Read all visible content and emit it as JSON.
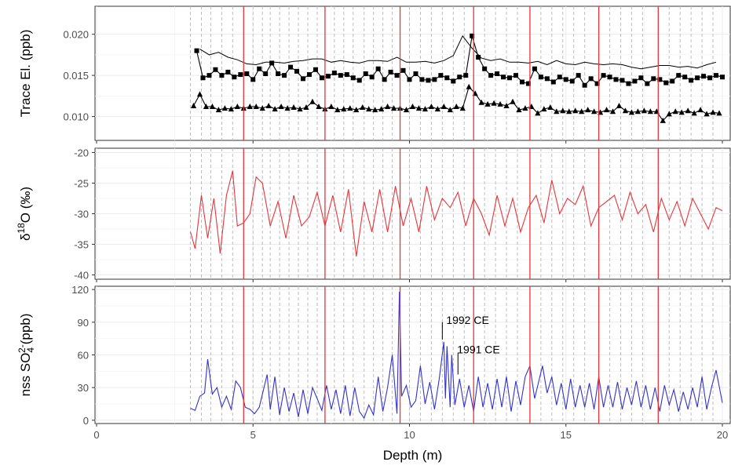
{
  "chart_data": {
    "type": "line",
    "layout": "three vertically stacked panels sharing x axis",
    "xlabel": "Depth (m)",
    "x_ticks": [
      0,
      5,
      10,
      15,
      20
    ],
    "xlim": [
      0,
      20
    ],
    "grid": true,
    "red_vertical_lines": [
      4.7,
      7.3,
      9.7,
      12.05,
      13.85,
      16.05,
      17.95
    ],
    "dashed_vertical_lines": [
      3.0,
      3.35,
      3.65,
      4.0,
      4.35,
      5.0,
      5.3,
      5.55,
      5.85,
      6.15,
      6.45,
      6.75,
      7.05,
      7.6,
      7.9,
      8.2,
      8.55,
      8.85,
      9.15,
      9.45,
      10.0,
      10.35,
      10.7,
      11.05,
      11.4,
      11.75,
      12.4,
      12.75,
      13.1,
      13.45,
      14.2,
      14.55,
      14.9,
      15.25,
      15.6,
      16.4,
      16.75,
      17.1,
      17.45,
      18.3,
      18.65,
      19.0,
      19.35,
      19.7
    ],
    "panels": [
      {
        "ylabel": "Trace El. (ppb)",
        "y_ticks": [
          "0.010",
          "0.015",
          "0.020"
        ],
        "ylim": [
          0.0071,
          0.0234
        ],
        "series": [
          {
            "marker": "none",
            "color": "#000000",
            "x": [
              3.3,
              3.6,
              3.9,
              4.2,
              4.5,
              4.8,
              5.1,
              5.4,
              5.7,
              6.0,
              6.3,
              6.6,
              6.9,
              7.2,
              7.5,
              7.8,
              8.1,
              8.4,
              8.7,
              9.0,
              9.3,
              9.6,
              9.9,
              10.2,
              10.5,
              10.8,
              11.1,
              11.4,
              11.7,
              12.0,
              12.3,
              12.6,
              12.9,
              13.2,
              13.5,
              13.8,
              14.1,
              14.4,
              14.7,
              15.0,
              15.3,
              15.6,
              15.9,
              16.2,
              16.5,
              16.8,
              17.1,
              17.4,
              17.7,
              18.0,
              18.3,
              18.6,
              18.9,
              19.2,
              19.5,
              19.8
            ],
            "values": [
              0.0182,
              0.0175,
              0.0178,
              0.0172,
              0.0169,
              0.0164,
              0.0163,
              0.0166,
              0.0166,
              0.0165,
              0.0167,
              0.0168,
              0.017,
              0.017,
              0.0166,
              0.0168,
              0.0166,
              0.0165,
              0.0168,
              0.0168,
              0.0167,
              0.0172,
              0.0166,
              0.0166,
              0.0167,
              0.0165,
              0.0168,
              0.0174,
              0.0198,
              0.0183,
              0.0171,
              0.0168,
              0.017,
              0.0166,
              0.0166,
              0.0165,
              0.0167,
              0.0163,
              0.0168,
              0.0164,
              0.0163,
              0.0166,
              0.0164,
              0.0163,
              0.0164,
              0.0163,
              0.016,
              0.0158,
              0.016,
              0.0162,
              0.0162,
              0.016,
              0.0161,
              0.0159,
              0.0163,
              0.0166
            ]
          },
          {
            "marker": "square",
            "color": "#000000",
            "x": [
              3.2,
              3.4,
              3.6,
              3.8,
              4.0,
              4.2,
              4.4,
              4.6,
              4.8,
              5.0,
              5.2,
              5.4,
              5.6,
              5.8,
              6.0,
              6.2,
              6.4,
              6.6,
              6.8,
              7.0,
              7.2,
              7.4,
              7.6,
              7.8,
              8.0,
              8.2,
              8.4,
              8.6,
              8.8,
              9.0,
              9.2,
              9.4,
              9.6,
              9.8,
              10.0,
              10.2,
              10.4,
              10.6,
              10.8,
              11.0,
              11.2,
              11.4,
              11.6,
              11.8,
              12.0,
              12.2,
              12.4,
              12.6,
              12.8,
              13.0,
              13.2,
              13.4,
              13.6,
              13.8,
              14.0,
              14.2,
              14.4,
              14.6,
              14.8,
              15.0,
              15.2,
              15.4,
              15.6,
              15.8,
              16.0,
              16.2,
              16.4,
              16.6,
              16.8,
              17.0,
              17.2,
              17.4,
              17.6,
              17.8,
              18.0,
              18.2,
              18.4,
              18.6,
              18.8,
              19.0,
              19.2,
              19.4,
              19.6,
              19.8,
              20.0
            ],
            "values": [
              0.018,
              0.0147,
              0.015,
              0.0157,
              0.015,
              0.0154,
              0.0148,
              0.0151,
              0.0152,
              0.0145,
              0.0158,
              0.0152,
              0.0165,
              0.0152,
              0.015,
              0.016,
              0.0155,
              0.0146,
              0.0151,
              0.0157,
              0.0147,
              0.0149,
              0.0153,
              0.015,
              0.0151,
              0.0147,
              0.0144,
              0.0152,
              0.0148,
              0.0158,
              0.0145,
              0.0154,
              0.015,
              0.0156,
              0.0145,
              0.0152,
              0.0145,
              0.0144,
              0.0145,
              0.015,
              0.0147,
              0.0143,
              0.0148,
              0.015,
              0.0198,
              0.0172,
              0.0158,
              0.015,
              0.0152,
              0.0148,
              0.0147,
              0.015,
              0.0142,
              0.014,
              0.0158,
              0.0148,
              0.0146,
              0.0142,
              0.0148,
              0.0145,
              0.0143,
              0.015,
              0.0138,
              0.0146,
              0.014,
              0.015,
              0.0148,
              0.0145,
              0.0144,
              0.014,
              0.0143,
              0.0147,
              0.014,
              0.0146,
              0.0145,
              0.0141,
              0.0143,
              0.015,
              0.0148,
              0.0144,
              0.0147,
              0.0149,
              0.0147,
              0.015,
              0.0148
            ]
          },
          {
            "marker": "triangle",
            "color": "#000000",
            "x": [
              3.1,
              3.3,
              3.5,
              3.7,
              3.9,
              4.1,
              4.3,
              4.5,
              4.7,
              4.9,
              5.1,
              5.3,
              5.5,
              5.7,
              5.9,
              6.1,
              6.3,
              6.5,
              6.7,
              6.9,
              7.1,
              7.3,
              7.5,
              7.7,
              7.9,
              8.1,
              8.3,
              8.5,
              8.7,
              8.9,
              9.1,
              9.3,
              9.5,
              9.7,
              9.9,
              10.1,
              10.3,
              10.5,
              10.7,
              10.9,
              11.1,
              11.3,
              11.5,
              11.7,
              11.9,
              12.1,
              12.3,
              12.5,
              12.7,
              12.9,
              13.1,
              13.3,
              13.5,
              13.7,
              13.9,
              14.1,
              14.3,
              14.5,
              14.7,
              14.9,
              15.1,
              15.3,
              15.5,
              15.7,
              15.9,
              16.1,
              16.3,
              16.5,
              16.7,
              16.9,
              17.1,
              17.3,
              17.5,
              17.7,
              17.9,
              18.1,
              18.3,
              18.5,
              18.7,
              18.9,
              19.1,
              19.3,
              19.5,
              19.7,
              19.9
            ],
            "values": [
              0.0113,
              0.0127,
              0.0112,
              0.0112,
              0.0108,
              0.011,
              0.0109,
              0.0112,
              0.011,
              0.0112,
              0.0112,
              0.011,
              0.0113,
              0.0109,
              0.0112,
              0.011,
              0.0111,
              0.0109,
              0.0111,
              0.0118,
              0.0112,
              0.0109,
              0.0112,
              0.0108,
              0.0109,
              0.011,
              0.0108,
              0.0111,
              0.0109,
              0.0108,
              0.0109,
              0.0112,
              0.011,
              0.011,
              0.0108,
              0.0112,
              0.011,
              0.0109,
              0.0112,
              0.0109,
              0.0112,
              0.0108,
              0.0112,
              0.011,
              0.0136,
              0.0128,
              0.0117,
              0.0115,
              0.0116,
              0.0115,
              0.0113,
              0.0118,
              0.0108,
              0.011,
              0.0112,
              0.0104,
              0.0109,
              0.0111,
              0.0106,
              0.0107,
              0.0106,
              0.0107,
              0.0106,
              0.0108,
              0.0106,
              0.0105,
              0.0108,
              0.0106,
              0.0113,
              0.0107,
              0.0105,
              0.0106,
              0.0107,
              0.0106,
              0.0106,
              0.0095,
              0.0103,
              0.0106,
              0.0105,
              0.0107,
              0.0104,
              0.0108,
              0.0103,
              0.0105,
              0.0104
            ]
          }
        ]
      },
      {
        "ylabel": "δ18O (‰)",
        "ylabel_base": "δ",
        "ylabel_sup": "18",
        "ylabel_rest": "O (‰)",
        "y_ticks": [
          "-40",
          "-35",
          "-30",
          "-25",
          "-20"
        ],
        "ylim": [
          -40.7,
          -19.3
        ],
        "series": [
          {
            "color": "#e8343a",
            "x": [
              3.0,
              3.15,
              3.35,
              3.55,
              3.75,
              3.95,
              4.15,
              4.35,
              4.5,
              4.7,
              4.9,
              5.1,
              5.3,
              5.55,
              5.8,
              6.05,
              6.3,
              6.55,
              6.8,
              7.05,
              7.3,
              7.55,
              7.8,
              8.05,
              8.3,
              8.55,
              8.8,
              9.05,
              9.3,
              9.55,
              9.8,
              10.05,
              10.3,
              10.55,
              10.8,
              11.05,
              11.3,
              11.55,
              11.8,
              12.05,
              12.3,
              12.55,
              12.8,
              13.05,
              13.3,
              13.55,
              13.8,
              14.05,
              14.3,
              14.55,
              14.8,
              15.05,
              15.3,
              15.55,
              15.8,
              16.05,
              16.3,
              16.55,
              16.8,
              17.05,
              17.3,
              17.55,
              17.8,
              18.05,
              18.3,
              18.55,
              18.8,
              19.05,
              19.3,
              19.55,
              19.8,
              20.0
            ],
            "values": [
              -33,
              -35.7,
              -27,
              -34,
              -27.5,
              -36.5,
              -27,
              -23,
              -32,
              -31.5,
              -30,
              -24,
              -25,
              -32,
              -28,
              -34,
              -27,
              -32,
              -30.5,
              -26.5,
              -32,
              -27,
              -33,
              -26,
              -37,
              -28,
              -33,
              -26,
              -33,
              -25.5,
              -32,
              -27.5,
              -33,
              -25.5,
              -31,
              -27.5,
              -29,
              -26.5,
              -32,
              -27.5,
              -30,
              -33.5,
              -27,
              -32,
              -27.5,
              -33,
              -29,
              -27,
              -31.5,
              -24.5,
              -30,
              -27.5,
              -28.5,
              -25.5,
              -32,
              -29,
              -28,
              -27,
              -31,
              -26.5,
              -30,
              -28.5,
              -33,
              -27.5,
              -31,
              -28,
              -32,
              -27.5,
              -30,
              -32.5,
              -29,
              -29.5
            ]
          }
        ]
      },
      {
        "ylabel": "nss SO42-(ppb)",
        "ylabel_base": "nss SO",
        "ylabel_sub": "4",
        "ylabel_sup": "2-",
        "ylabel_rest": "(ppb)",
        "y_ticks": [
          "0",
          "30",
          "60",
          "90",
          "120"
        ],
        "ylim": [
          -3,
          123
        ],
        "series": [
          {
            "color": "#3333cc",
            "x": [
              3.0,
              3.15,
              3.3,
              3.45,
              3.55,
              3.7,
              3.85,
              4.0,
              4.15,
              4.3,
              4.45,
              4.6,
              4.75,
              4.9,
              5.05,
              5.2,
              5.35,
              5.45,
              5.55,
              5.7,
              5.85,
              6.0,
              6.15,
              6.3,
              6.45,
              6.6,
              6.75,
              6.9,
              7.05,
              7.2,
              7.35,
              7.5,
              7.65,
              7.8,
              7.95,
              8.1,
              8.25,
              8.4,
              8.55,
              8.7,
              8.85,
              9.0,
              9.15,
              9.3,
              9.45,
              9.6,
              9.68,
              9.75,
              9.9,
              10.05,
              10.2,
              10.35,
              10.5,
              10.65,
              10.8,
              10.95,
              11.1,
              11.15,
              11.2,
              11.3,
              11.35,
              11.45,
              11.6,
              11.75,
              11.9,
              12.05,
              12.2,
              12.35,
              12.5,
              12.65,
              12.8,
              12.95,
              13.1,
              13.25,
              13.4,
              13.55,
              13.7,
              13.85,
              14.0,
              14.15,
              14.25,
              14.4,
              14.55,
              14.7,
              14.85,
              15.0,
              15.15,
              15.3,
              15.45,
              15.6,
              15.75,
              15.9,
              16.05,
              16.2,
              16.35,
              16.5,
              16.65,
              16.8,
              16.95,
              17.1,
              17.25,
              17.4,
              17.55,
              17.7,
              17.85,
              18.0,
              18.15,
              18.3,
              18.45,
              18.6,
              18.75,
              18.9,
              19.05,
              19.2,
              19.35,
              19.5,
              19.65,
              19.8,
              20.0
            ],
            "values": [
              11,
              9,
              22,
              25,
              56,
              24,
              30,
              12,
              22,
              10,
              36,
              30,
              12,
              10,
              6,
              12,
              30,
              42,
              10,
              40,
              5,
              30,
              8,
              25,
              3,
              28,
              6,
              30,
              20,
              9,
              32,
              10,
              28,
              6,
              32,
              4,
              30,
              8,
              2,
              14,
              5,
              40,
              8,
              30,
              60,
              6,
              118,
              22,
              32,
              12,
              18,
              50,
              15,
              35,
              10,
              38,
              72,
              20,
              68,
              12,
              60,
              14,
              38,
              12,
              32,
              8,
              40,
              12,
              34,
              10,
              38,
              12,
              40,
              8,
              36,
              14,
              40,
              50,
              20,
              38,
              50,
              25,
              40,
              14,
              34,
              10,
              38,
              12,
              32,
              12,
              34,
              10,
              40,
              12,
              32,
              12,
              35,
              10,
              30,
              14,
              36,
              12,
              32,
              10,
              30,
              8,
              32,
              14,
              28,
              8,
              26,
              10,
              30,
              12,
              40,
              10,
              30,
              46,
              16
            ]
          }
        ],
        "annotations": [
          {
            "text": "1992 CE",
            "x": 11.25,
            "y": 92
          },
          {
            "text": "1991 CE",
            "x": 11.6,
            "y": 65
          }
        ]
      }
    ]
  }
}
